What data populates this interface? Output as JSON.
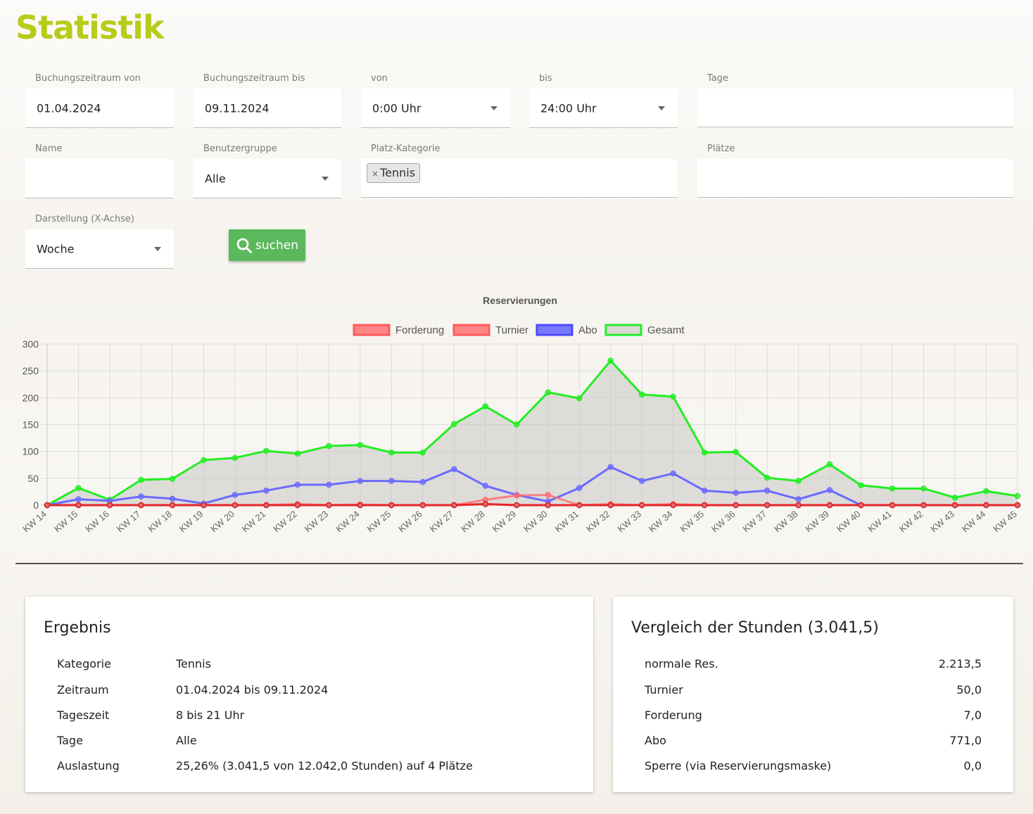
{
  "page": {
    "title": "Statistik"
  },
  "filters": {
    "date_from": {
      "label": "Buchungszeitraum von",
      "value": "01.04.2024"
    },
    "date_to": {
      "label": "Buchungszeitraum bis",
      "value": "09.11.2024"
    },
    "time_from": {
      "label": "von",
      "value": "0:00 Uhr"
    },
    "time_to": {
      "label": "bis",
      "value": "24:00 Uhr"
    },
    "days": {
      "label": "Tage",
      "value": ""
    },
    "name": {
      "label": "Name",
      "value": ""
    },
    "user_group": {
      "label": "Benutzergruppe",
      "value": "Alle"
    },
    "court_category": {
      "label": "Platz-Kategorie",
      "chip": "Tennis",
      "chip_remove": "×"
    },
    "courts": {
      "label": "Plätze",
      "value": ""
    },
    "x_axis": {
      "label": "Darstellung (X-Achse)",
      "value": "Woche"
    },
    "search_label": "suchen"
  },
  "chart_data": {
    "type": "line",
    "title": "Reservierungen",
    "categories": [
      "KW 14",
      "KW 15",
      "KW 16",
      "KW 17",
      "KW 18",
      "KW 19",
      "KW 20",
      "KW 21",
      "KW 22",
      "KW 23",
      "KW 24",
      "KW 25",
      "KW 26",
      "KW 27",
      "KW 28",
      "KW 29",
      "KW 30",
      "KW 31",
      "KW 32",
      "KW 33",
      "KW 34",
      "KW 35",
      "KW 36",
      "KW 37",
      "KW 38",
      "KW 39",
      "KW 40",
      "KW 41",
      "KW 42",
      "KW 43",
      "KW 44",
      "KW 45"
    ],
    "ylim": [
      0,
      300
    ],
    "yticks": [
      0,
      50,
      100,
      150,
      200,
      250,
      300
    ],
    "grid": true,
    "legend_position": "top",
    "series": [
      {
        "name": "Forderung",
        "color": "#ff6b6b",
        "values": [
          0,
          0,
          0,
          0,
          0,
          0,
          0,
          0,
          0,
          0,
          0,
          0,
          0,
          0,
          2,
          0,
          0,
          0,
          0,
          0,
          0,
          0,
          0,
          0,
          0,
          0,
          0,
          0,
          0,
          0,
          0,
          0
        ]
      },
      {
        "name": "Turnier",
        "color": "#ff6b6b",
        "values": [
          0,
          0,
          0,
          0,
          0,
          0,
          0,
          0,
          2,
          0,
          1,
          0,
          0,
          0,
          10,
          18,
          19,
          0,
          2,
          0,
          2,
          0,
          0,
          0,
          0,
          0,
          0,
          0,
          0,
          0,
          0,
          0
        ]
      },
      {
        "name": "Abo",
        "color": "#6b6bff",
        "values": [
          0,
          11,
          8,
          16,
          12,
          3,
          19,
          27,
          38,
          38,
          45,
          45,
          43,
          67,
          36,
          19,
          7,
          32,
          71,
          45,
          59,
          27,
          23,
          27,
          11,
          28,
          0,
          0,
          0,
          0,
          0,
          0
        ]
      },
      {
        "name": "Gesamt",
        "color": "#22ee22",
        "values": [
          0,
          32,
          10,
          47,
          49,
          84,
          88,
          101,
          96,
          110,
          112,
          98,
          98,
          151,
          184,
          150,
          210,
          199,
          269,
          206,
          202,
          98,
          99,
          51,
          45,
          76,
          37,
          31,
          31,
          14,
          26,
          17
        ]
      }
    ]
  },
  "result": {
    "heading": "Ergebnis",
    "rows": [
      {
        "key": "Kategorie",
        "value": "Tennis"
      },
      {
        "key": "Zeitraum",
        "value": "01.04.2024 bis 09.11.2024"
      },
      {
        "key": "Tageszeit",
        "value": "8 bis 21 Uhr"
      },
      {
        "key": "Tage",
        "value": "Alle"
      },
      {
        "key": "Auslastung",
        "value": "25,26% (3.041,5 von 12.042,0 Stunden) auf 4 Plätze"
      }
    ]
  },
  "comparison": {
    "heading": "Vergleich der Stunden (3.041,5)",
    "rows": [
      {
        "key": "normale Res.",
        "value": "2.213,5"
      },
      {
        "key": "Turnier",
        "value": "50,0"
      },
      {
        "key": "Forderung",
        "value": "7,0"
      },
      {
        "key": "Abo",
        "value": "771,0"
      },
      {
        "key": "Sperre (via Reservierungsmaske)",
        "value": "0,0"
      }
    ]
  }
}
